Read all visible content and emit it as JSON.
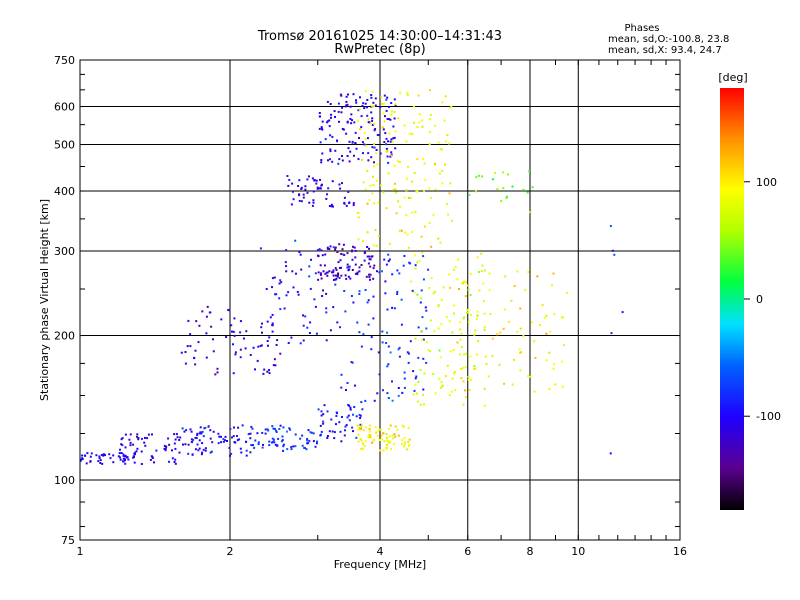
{
  "chart_data": {
    "type": "scatter",
    "title": "Tromsø 20161025 14:30:00–14:31:43",
    "subtitle": "RwPretec (8p)",
    "xlabel": "Frequency [MHz]",
    "ylabel": "Stationary phase Virtual Height [km]",
    "x_scale": "log",
    "y_scale": "log",
    "xlim": [
      1,
      16
    ],
    "ylim": [
      75,
      750
    ],
    "x_ticks": [
      1,
      2,
      4,
      6,
      8,
      10,
      16
    ],
    "y_ticks": [
      75,
      100,
      200,
      300,
      400,
      500,
      600,
      750
    ],
    "grid": true,
    "phase_legend": {
      "title": "Phases",
      "line1": "mean, sd,O:-100.8, 23.8",
      "line2": "mean, sd,X:  93.4, 24.7"
    },
    "colorbar": {
      "label": "[deg]",
      "min": -180,
      "max": 180,
      "ticks": [
        100,
        0,
        -100
      ],
      "colormap": "rainbow (black-purple-blue-cyan-green-yellow-orange-red)"
    },
    "clusters": [
      {
        "x_range": [
          1.0,
          1.25
        ],
        "y_range": [
          108,
          114
        ],
        "phase_mean": -100,
        "count": 40
      },
      {
        "x_range": [
          1.2,
          1.6
        ],
        "y_range": [
          108,
          125
        ],
        "phase_mean": -110,
        "count": 70
      },
      {
        "x_range": [
          1.6,
          2.2
        ],
        "y_range": [
          112,
          130
        ],
        "phase_mean": -100,
        "count": 80
      },
      {
        "x_range": [
          2.2,
          3.0
        ],
        "y_range": [
          115,
          130
        ],
        "phase_mean": -80,
        "count": 70
      },
      {
        "x_range": [
          3.0,
          3.7
        ],
        "y_range": [
          120,
          145
        ],
        "phase_mean": -90,
        "count": 50
      },
      {
        "x_range": [
          3.6,
          4.6
        ],
        "y_range": [
          115,
          130
        ],
        "phase_mean": 95,
        "count": 80
      },
      {
        "x_range": [
          1.6,
          2.6
        ],
        "y_range": [
          165,
          230
        ],
        "phase_mean": -120,
        "count": 70
      },
      {
        "x_range": [
          2.3,
          3.3
        ],
        "y_range": [
          190,
          320
        ],
        "phase_mean": -100,
        "count": 70
      },
      {
        "x_range": [
          3.0,
          3.9
        ],
        "y_range": [
          260,
          310
        ],
        "phase_mean": -125,
        "count": 90
      },
      {
        "x_range": [
          2.6,
          3.6
        ],
        "y_range": [
          370,
          430
        ],
        "phase_mean": -110,
        "count": 60
      },
      {
        "x_range": [
          3.0,
          4.3
        ],
        "y_range": [
          450,
          640
        ],
        "phase_mean": -105,
        "count": 150
      },
      {
        "x_range": [
          3.6,
          5.6
        ],
        "y_range": [
          300,
          660
        ],
        "phase_mean": 90,
        "count": 150
      },
      {
        "x_range": [
          3.3,
          5.0
        ],
        "y_range": [
          145,
          300
        ],
        "phase_mean": -80,
        "count": 110
      },
      {
        "x_range": [
          4.6,
          6.5
        ],
        "y_range": [
          140,
          300
        ],
        "phase_mean": 80,
        "count": 100
      },
      {
        "x_range": [
          5.5,
          9.5
        ],
        "y_range": [
          150,
          280
        ],
        "phase_mean": 100,
        "count": 90
      },
      {
        "x_range": [
          6.0,
          8.5
        ],
        "y_range": [
          360,
          440
        ],
        "phase_mean": 40,
        "count": 20
      },
      {
        "x_range": [
          11.5,
          12.5
        ],
        "y_range": [
          100,
          420
        ],
        "phase_mean": -80,
        "count": 6
      }
    ]
  }
}
